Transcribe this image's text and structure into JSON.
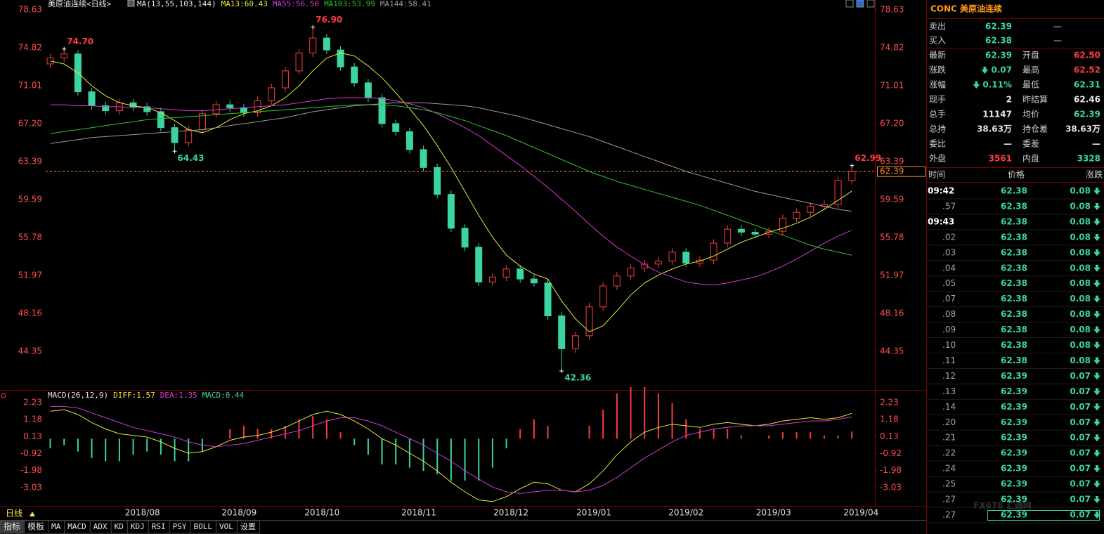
{
  "chart_data": [
    {
      "type": "candlestick",
      "title": "美原油连续<日线>",
      "indicator": "MA(13,55,103,144)",
      "x": [
        1,
        4,
        7,
        10,
        13,
        16,
        19,
        22,
        25,
        28,
        31,
        34,
        37,
        40,
        43,
        46,
        49,
        52,
        55,
        58,
        61,
        64,
        67,
        70,
        73,
        76,
        79,
        82,
        85,
        88,
        91,
        94,
        97,
        100,
        103,
        106,
        109,
        112,
        115,
        118,
        121,
        124,
        127,
        130,
        133,
        136,
        139,
        142,
        145,
        148,
        151,
        154,
        157,
        160,
        163,
        166,
        169,
        172,
        175
      ],
      "open": [
        73.2,
        73.8,
        74.2,
        70.4,
        69.0,
        68.5,
        69.3,
        68.9,
        68.4,
        66.8,
        65.3,
        66.6,
        68.2,
        69.1,
        68.8,
        68.3,
        69.5,
        70.8,
        72.5,
        74.3,
        75.8,
        74.6,
        72.9,
        71.3,
        69.8,
        67.2,
        66.4,
        64.6,
        62.8,
        60.1,
        56.7,
        54.8,
        51.3,
        51.8,
        52.6,
        51.6,
        51.2,
        47.9,
        44.6,
        45.9,
        48.8,
        50.9,
        51.9,
        52.7,
        53.1,
        53.4,
        54.3,
        53.2,
        53.5,
        55.2,
        56.6,
        56.3,
        56.1,
        56.4,
        57.7,
        58.3,
        58.9,
        59.1,
        61.5
      ],
      "high": [
        74.2,
        74.7,
        74.6,
        70.8,
        69.4,
        69.7,
        69.7,
        69.3,
        68.8,
        67.2,
        67.0,
        68.6,
        69.5,
        69.5,
        69.2,
        69.9,
        71.2,
        72.9,
        74.7,
        76.9,
        76.2,
        75.0,
        73.3,
        71.7,
        70.2,
        67.6,
        66.8,
        65.0,
        63.2,
        60.5,
        57.1,
        55.2,
        52.2,
        53.0,
        53.0,
        52.0,
        51.6,
        48.3,
        46.3,
        49.2,
        51.3,
        52.3,
        53.1,
        53.5,
        53.8,
        54.7,
        54.7,
        53.9,
        55.6,
        57.0,
        57.0,
        56.7,
        56.8,
        58.1,
        58.7,
        59.3,
        59.5,
        61.9,
        62.99
      ],
      "low": [
        72.8,
        73.4,
        70.0,
        68.6,
        68.1,
        68.1,
        68.5,
        68.0,
        66.4,
        64.43,
        64.9,
        66.2,
        67.8,
        68.4,
        67.9,
        67.9,
        69.1,
        70.4,
        72.1,
        73.9,
        74.2,
        72.5,
        70.9,
        69.4,
        66.8,
        66.0,
        64.2,
        62.4,
        59.7,
        56.3,
        54.4,
        50.9,
        50.9,
        51.4,
        51.2,
        50.8,
        47.5,
        42.36,
        44.2,
        45.5,
        48.4,
        50.5,
        51.5,
        52.3,
        52.7,
        53.0,
        52.8,
        52.8,
        53.1,
        54.8,
        55.9,
        55.7,
        55.7,
        56.0,
        57.3,
        57.9,
        58.5,
        58.7,
        61.1
      ],
      "close": [
        73.8,
        74.2,
        70.4,
        69.0,
        68.5,
        69.3,
        68.9,
        68.4,
        66.8,
        65.3,
        66.6,
        68.2,
        69.1,
        68.8,
        68.3,
        69.5,
        70.8,
        72.5,
        74.3,
        75.8,
        74.6,
        72.9,
        71.3,
        69.8,
        67.2,
        66.4,
        64.6,
        62.8,
        60.1,
        56.7,
        54.8,
        51.3,
        51.8,
        52.6,
        51.6,
        51.2,
        47.9,
        44.6,
        45.9,
        48.8,
        50.9,
        51.9,
        52.7,
        53.1,
        53.4,
        54.3,
        53.2,
        53.5,
        55.2,
        56.6,
        56.3,
        56.1,
        56.4,
        57.7,
        58.3,
        58.9,
        59.1,
        61.5,
        62.39
      ],
      "color_up": "#ff3c3c",
      "color_down": "#3ad5a0",
      "last_color": "#ff8c1a",
      "xlim": [
        0,
        180
      ],
      "ylim": [
        40.67,
        78.63
      ],
      "yticks": [
        78.63,
        74.82,
        71.01,
        {
          "value": 67.2,
          "label": "67.20"
        },
        63.39,
        59.59,
        55.78,
        51.97,
        48.16,
        44.35
      ],
      "series": [
        {
          "name": "MA13:60.43",
          "color": "#e8e83a",
          "values": [
            73.5,
            73.2,
            72.3,
            71.0,
            70.0,
            69.3,
            69.0,
            68.8,
            68.3,
            67.5,
            66.6,
            66.3,
            66.8,
            67.6,
            68.2,
            68.5,
            69.0,
            69.8,
            71.0,
            72.5,
            73.8,
            74.3,
            74.0,
            73.0,
            71.8,
            70.3,
            68.7,
            67.0,
            65.0,
            62.8,
            60.4,
            58.0,
            55.8,
            54.0,
            52.9,
            52.1,
            51.6,
            49.4,
            47.6,
            46.3,
            46.9,
            48.4,
            50.0,
            51.2,
            52.0,
            52.6,
            53.1,
            53.4,
            53.9,
            54.6,
            55.3,
            55.8,
            56.3,
            56.7,
            57.2,
            57.8,
            58.6,
            59.5,
            60.43
          ]
        },
        {
          "name": "MA55:56.50",
          "color": "#d43ad4",
          "values": [
            69.1,
            69.1,
            69.0,
            69.0,
            68.9,
            68.9,
            68.8,
            68.8,
            68.7,
            68.6,
            68.5,
            68.5,
            68.6,
            68.7,
            68.8,
            68.9,
            69.0,
            69.1,
            69.3,
            69.5,
            69.7,
            69.8,
            69.8,
            69.8,
            69.7,
            69.5,
            69.2,
            68.8,
            68.2,
            67.5,
            66.8,
            66.0,
            65.0,
            64.0,
            63.0,
            61.9,
            60.8,
            59.6,
            58.4,
            57.1,
            55.9,
            54.8,
            53.9,
            53.0,
            52.3,
            51.8,
            51.3,
            51.1,
            51.0,
            51.2,
            51.5,
            51.8,
            52.3,
            52.9,
            53.6,
            54.4,
            55.2,
            55.9,
            56.5
          ]
        },
        {
          "name": "MA103:53.99",
          "color": "#2ec42e",
          "values": [
            66.2,
            66.4,
            66.6,
            66.8,
            67.0,
            67.2,
            67.4,
            67.6,
            67.7,
            67.8,
            67.9,
            68.0,
            68.1,
            68.2,
            68.3,
            68.4,
            68.5,
            68.6,
            68.7,
            68.8,
            68.9,
            69.0,
            69.1,
            69.1,
            69.1,
            69.0,
            68.8,
            68.6,
            68.3,
            67.9,
            67.5,
            67.0,
            66.5,
            66.0,
            65.4,
            64.8,
            64.2,
            63.6,
            63.0,
            62.4,
            61.9,
            61.4,
            61.0,
            60.6,
            60.2,
            59.8,
            59.4,
            59.0,
            58.5,
            58.0,
            57.5,
            57.0,
            56.5,
            56.0,
            55.5,
            55.0,
            54.6,
            54.3,
            53.99
          ]
        },
        {
          "name": "MA144:58.41",
          "color": "#9a9a9a",
          "values": [
            65.2,
            65.4,
            65.6,
            65.8,
            65.9,
            66.0,
            66.1,
            66.2,
            66.3,
            66.4,
            66.5,
            66.6,
            66.8,
            67.0,
            67.2,
            67.4,
            67.6,
            67.8,
            68.1,
            68.4,
            68.6,
            68.8,
            69.0,
            69.1,
            69.2,
            69.3,
            69.3,
            69.3,
            69.2,
            69.1,
            69.0,
            68.8,
            68.5,
            68.2,
            67.9,
            67.5,
            67.1,
            66.7,
            66.3,
            65.9,
            65.4,
            64.9,
            64.4,
            63.9,
            63.4,
            62.9,
            62.4,
            62.0,
            61.6,
            61.2,
            60.8,
            60.4,
            60.1,
            59.8,
            59.5,
            59.2,
            58.9,
            58.6,
            58.41
          ]
        }
      ],
      "annotations": [
        {
          "x": 4,
          "value": 74.7,
          "label": "74.70"
        },
        {
          "x": 28,
          "value": 64.43,
          "label": "64.43"
        },
        {
          "x": 58,
          "value": 76.9,
          "label": "76.90"
        },
        {
          "x": 112,
          "value": 42.36,
          "label": "42.36"
        },
        {
          "x": 175,
          "value": 62.99,
          "label": "62.99"
        }
      ]
    },
    {
      "type": "macd",
      "title": "MACD(26,12,9)",
      "x": [
        1,
        4,
        7,
        10,
        13,
        16,
        19,
        22,
        25,
        28,
        31,
        34,
        37,
        40,
        43,
        46,
        49,
        52,
        55,
        58,
        61,
        64,
        67,
        70,
        73,
        76,
        79,
        82,
        85,
        88,
        91,
        94,
        97,
        100,
        103,
        106,
        109,
        112,
        115,
        118,
        121,
        124,
        127,
        130,
        133,
        136,
        139,
        142,
        145,
        148,
        151,
        154,
        157,
        160,
        163,
        166,
        169,
        172,
        175
      ],
      "xlim": [
        0,
        180
      ],
      "ylim": [
        -4.17,
        2.89
      ],
      "yticks": [
        2.23,
        1.18,
        0.13,
        -0.92,
        -1.98,
        -3.03
      ],
      "xticks": [
        {
          "value": 21,
          "label": "2018/08"
        },
        {
          "value": 42,
          "label": "2018/09"
        },
        {
          "value": 60,
          "label": "2018/10"
        },
        {
          "value": 81,
          "label": "2018/11"
        },
        {
          "value": 101,
          "label": "2018/12"
        },
        {
          "value": 119,
          "label": "2019/01"
        },
        {
          "value": 139,
          "label": "2019/02"
        },
        {
          "value": 158,
          "label": "2019/03"
        },
        {
          "value": 177,
          "label": "2019/04"
        }
      ],
      "series": [
        {
          "name": "DIFF:1.57",
          "color": "#e8e83a",
          "values": [
            1.7,
            1.8,
            1.5,
            1.0,
            0.6,
            0.3,
            0.2,
            0.1,
            -0.2,
            -0.6,
            -0.9,
            -0.8,
            -0.5,
            -0.1,
            0.1,
            0.2,
            0.4,
            0.7,
            1.1,
            1.5,
            1.7,
            1.5,
            1.1,
            0.6,
            0.0,
            -0.4,
            -0.9,
            -1.4,
            -2.0,
            -2.7,
            -3.3,
            -3.8,
            -3.9,
            -3.6,
            -3.1,
            -2.7,
            -2.8,
            -3.2,
            -3.3,
            -2.8,
            -2.0,
            -1.0,
            -0.2,
            0.4,
            0.7,
            0.9,
            0.8,
            0.7,
            0.9,
            1.0,
            0.9,
            0.8,
            0.9,
            1.1,
            1.2,
            1.3,
            1.2,
            1.3,
            1.57
          ]
        },
        {
          "name": "DEA:1.35",
          "color": "#d43ad4",
          "values": [
            2.0,
            2.0,
            1.9,
            1.6,
            1.3,
            1.0,
            0.7,
            0.5,
            0.3,
            0.1,
            -0.2,
            -0.4,
            -0.5,
            -0.4,
            -0.3,
            -0.1,
            0.1,
            0.3,
            0.5,
            0.8,
            1.1,
            1.3,
            1.3,
            1.1,
            0.8,
            0.4,
            0.0,
            -0.4,
            -0.9,
            -1.4,
            -2.0,
            -2.5,
            -3.0,
            -3.3,
            -3.4,
            -3.3,
            -3.2,
            -3.2,
            -3.3,
            -3.2,
            -2.9,
            -2.4,
            -1.8,
            -1.2,
            -0.7,
            -0.2,
            0.2,
            0.4,
            0.6,
            0.7,
            0.8,
            0.8,
            0.8,
            0.9,
            1.0,
            1.1,
            1.1,
            1.2,
            1.35
          ]
        },
        {
          "name": "MACD:0.44",
          "type": "bar",
          "color": "#3ad5a0",
          "color_up": "#ff3c3c",
          "color_down": "#3ad5a0",
          "values": [
            -0.6,
            -0.4,
            -0.8,
            -1.2,
            -1.4,
            -1.4,
            -1.0,
            -0.8,
            -1.0,
            -1.4,
            -1.4,
            -0.8,
            0.0,
            0.6,
            0.8,
            0.6,
            0.6,
            0.8,
            1.2,
            1.4,
            1.2,
            0.4,
            -0.4,
            -1.0,
            -1.6,
            -1.6,
            -1.8,
            -2.0,
            -2.2,
            -2.6,
            -2.6,
            -2.6,
            -1.8,
            -0.6,
            0.6,
            1.2,
            0.8,
            0.0,
            0.0,
            0.8,
            1.8,
            2.8,
            3.2,
            3.2,
            2.8,
            2.2,
            1.2,
            0.6,
            0.6,
            0.6,
            0.2,
            0.0,
            0.2,
            0.4,
            0.4,
            0.4,
            0.2,
            0.2,
            0.44
          ]
        }
      ]
    }
  ],
  "quote": {
    "code": "CONC",
    "name": "美原油连续",
    "rows": [
      {
        "label": "卖出",
        "value": "62.39",
        "color": "#3ad5a0",
        "value2": "—"
      },
      {
        "label": "买入",
        "value": "62.38",
        "color": "#3ad5a0",
        "value2": "—"
      },
      {
        "label": "最新",
        "value": "62.39",
        "color": "#3ad5a0",
        "label2": "开盘",
        "value2": "62.50",
        "color2": "#ff3c3c"
      },
      {
        "label": "涨跌",
        "value": "0.07",
        "color": "#3ad5a0",
        "direction": "down",
        "label2": "最高",
        "value2": "62.52",
        "color2": "#ff3c3c"
      },
      {
        "label": "涨幅",
        "value": "0.11%",
        "color": "#3ad5a0",
        "direction": "down",
        "label2": "最低",
        "value2": "62.31",
        "color2": "#3ad5a0"
      },
      {
        "label": "现手",
        "value": "2",
        "color": "#e6e6e6",
        "label2": "昨结算",
        "value2": "62.46",
        "color2": "#e6e6e6"
      },
      {
        "label": "总手",
        "value": "11147",
        "color": "#e6e6e6",
        "label2": "均价",
        "value2": "62.39",
        "color2": "#3ad5a0"
      },
      {
        "label": "总持",
        "value": "38.63万",
        "color": "#e6e6e6",
        "label2": "持仓差",
        "value2": "38.63万",
        "color2": "#e6e6e6"
      },
      {
        "label": "委比",
        "value": "—",
        "color": "#e6e6e6",
        "label2": "委差",
        "value2": "—",
        "color2": "#e6e6e6"
      },
      {
        "label": "外盘",
        "value": "3561",
        "color": "#ff3c3c",
        "label2": "内盘",
        "value2": "3328",
        "color2": "#3ad5a0"
      }
    ]
  },
  "ticks": {
    "headers": [
      "时间",
      "价格",
      "涨跌"
    ],
    "rows": [
      [
        "09:42",
        "62.38",
        "0.08"
      ],
      [
        ".57",
        "62.38",
        "0.08"
      ],
      [
        "09:43",
        "62.38",
        "0.08"
      ],
      [
        ".02",
        "62.38",
        "0.08"
      ],
      [
        ".03",
        "62.38",
        "0.08"
      ],
      [
        ".04",
        "62.38",
        "0.08"
      ],
      [
        ".05",
        "62.38",
        "0.08"
      ],
      [
        ".07",
        "62.38",
        "0.08"
      ],
      [
        ".08",
        "62.38",
        "0.08"
      ],
      [
        ".09",
        "62.38",
        "0.08"
      ],
      [
        ".10",
        "62.38",
        "0.08"
      ],
      [
        ".11",
        "62.38",
        "0.08"
      ],
      [
        ".12",
        "62.39",
        "0.07"
      ],
      [
        ".13",
        "62.39",
        "0.07"
      ],
      [
        ".14",
        "62.39",
        "0.07"
      ],
      [
        ".20",
        "62.39",
        "0.07"
      ],
      [
        ".21",
        "62.39",
        "0.07"
      ],
      [
        ".22",
        "62.39",
        "0.07"
      ],
      [
        ".24",
        "62.39",
        "0.07"
      ],
      [
        ".25",
        "62.39",
        "0.07"
      ],
      [
        ".27",
        "62.39",
        "0.07"
      ],
      [
        ".27",
        "62.39",
        "0.07"
      ]
    ]
  },
  "period": "日线",
  "tabs": [
    "指标",
    "模板",
    "MA",
    "MACD",
    "ADX",
    "KD",
    "KDJ",
    "RSI",
    "PSY",
    "BOLL",
    "VOL",
    "设置"
  ],
  "watermark": "FX678 汇通网"
}
